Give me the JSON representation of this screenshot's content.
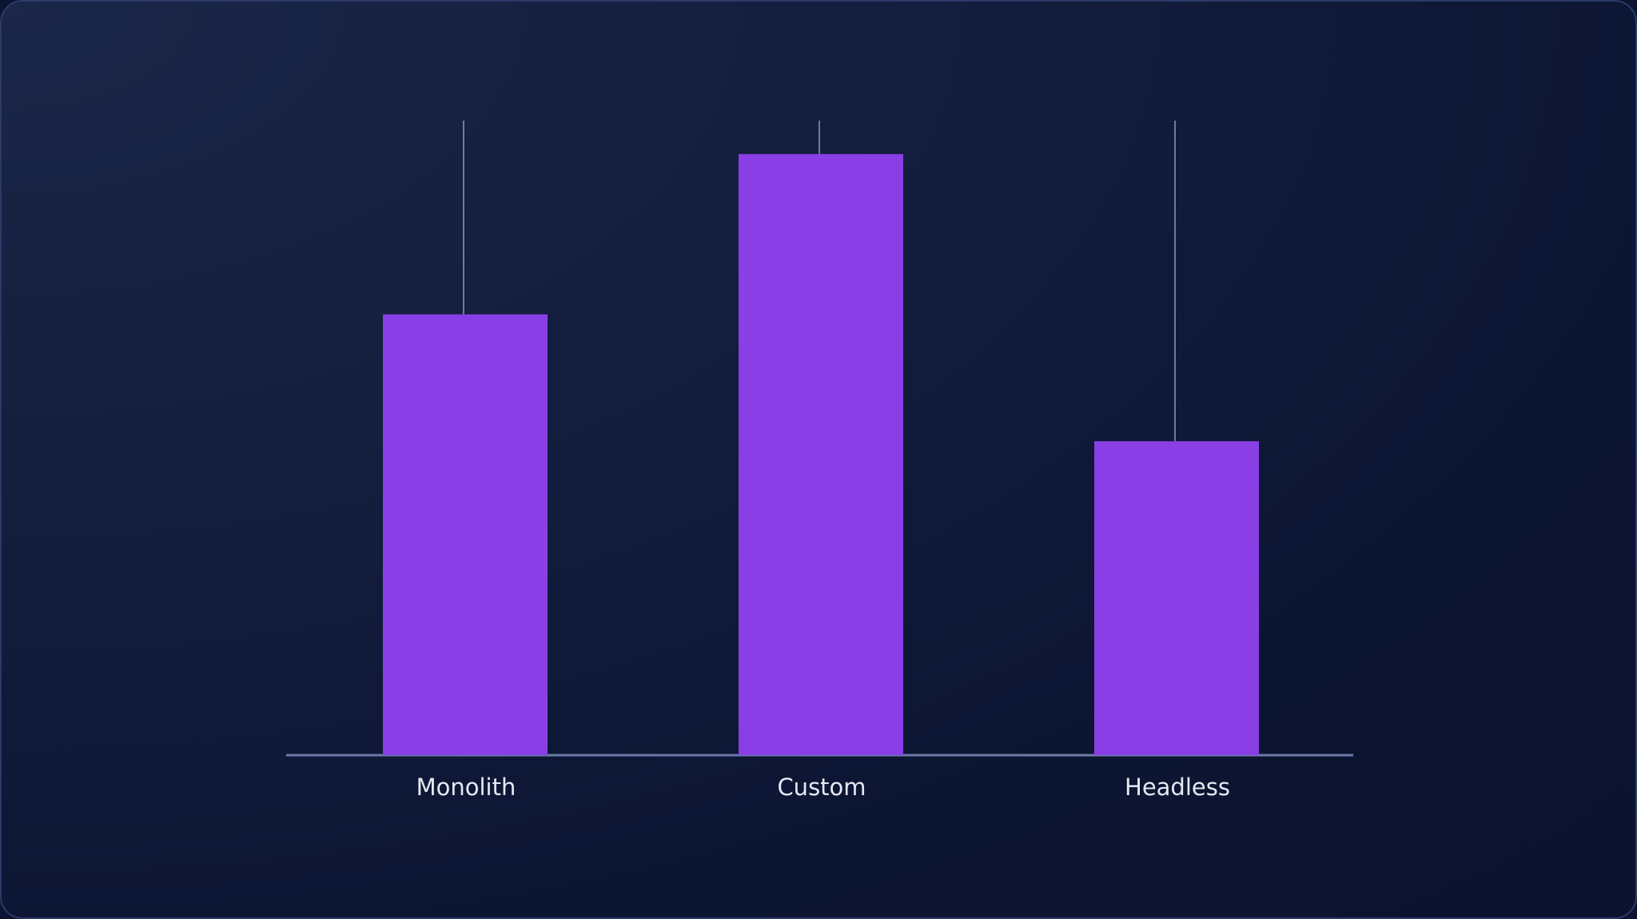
{
  "chart_data": {
    "type": "bar",
    "categories": [
      "Monolith",
      "Custom",
      "Headless"
    ],
    "values": [
      66,
      90,
      47
    ],
    "error_upper": [
      95,
      95,
      95
    ],
    "ylim": [
      0,
      95
    ],
    "grid": false,
    "legend": "none",
    "title": "",
    "xlabel": "",
    "ylabel": ""
  },
  "colors": {
    "bar": "#8a3fe6",
    "axis": "#6b7aa6",
    "whisker": "#6b7aa6",
    "label": "#e6e9f2"
  }
}
